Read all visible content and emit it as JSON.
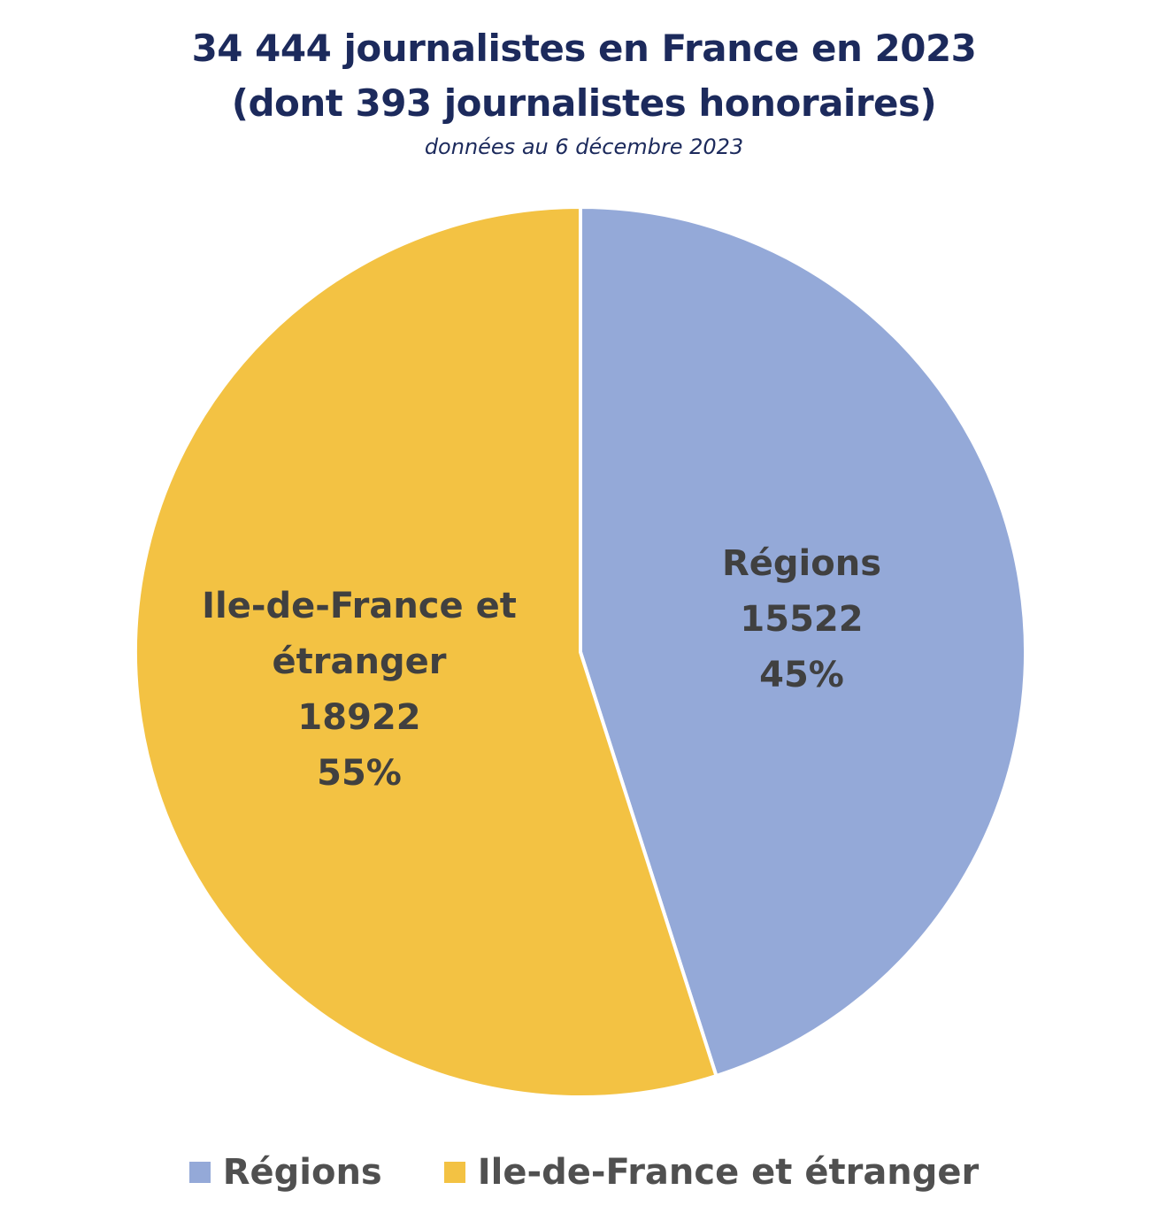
{
  "chart_data": {
    "type": "pie",
    "title": "34 444 journalistes en France en 2023",
    "title_line2": "(dont 393 journalistes honoraires)",
    "subtitle": "données au 6 décembre 2023",
    "legend_position": "bottom",
    "slices": [
      {
        "name": "Régions",
        "value": 15522,
        "percent": "45%",
        "color": "#94a9d8",
        "label_lines": [
          "Régions",
          "15522",
          "45%"
        ]
      },
      {
        "name": "Ile-de-France et étranger",
        "value": 18922,
        "percent": "55%",
        "color": "#f3c243",
        "label_lines": [
          "Ile-de-France et",
          "étranger",
          "18922",
          "55%"
        ]
      }
    ]
  }
}
